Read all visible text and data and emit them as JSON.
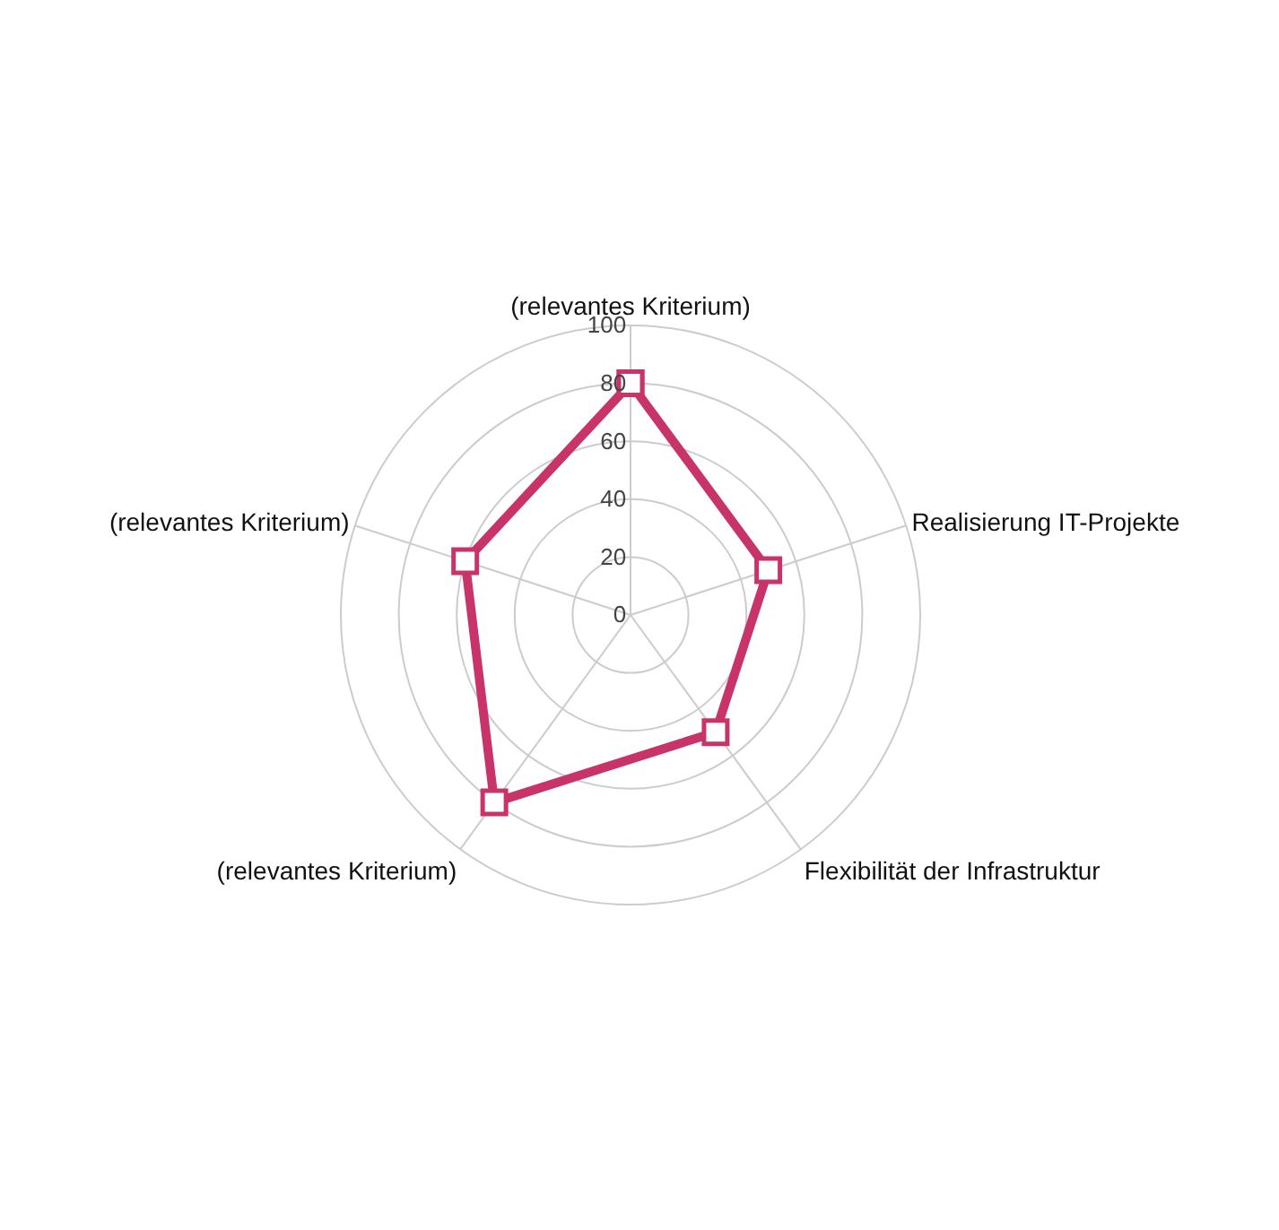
{
  "chart_data": {
    "type": "radar",
    "categories": [
      "(relevantes Kriterium)",
      "Realisierung IT-Projekte",
      "Flexibilität der Infrastruktur",
      "(relevantes Kriterium)",
      "(relevantes Kriterium)"
    ],
    "series": [
      {
        "color": "#c8336a",
        "values": [
          80,
          50,
          50,
          80,
          60
        ]
      }
    ],
    "ylim": [
      0,
      100
    ],
    "yticks": [
      0,
      20,
      40,
      60,
      80,
      100
    ],
    "grid": true,
    "marker": "square",
    "line_style": "solid",
    "legend": false
  }
}
